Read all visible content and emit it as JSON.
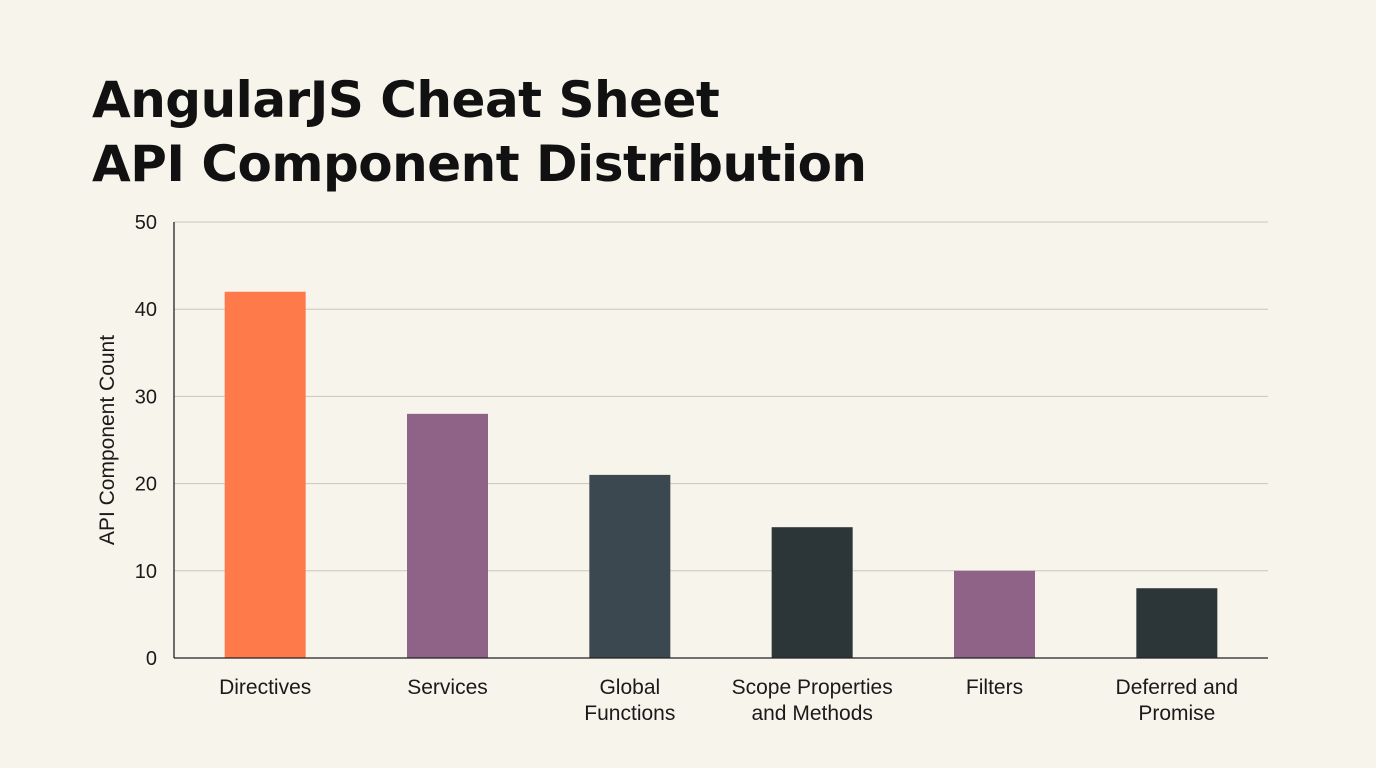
{
  "chart_data": {
    "type": "bar",
    "title_lines": [
      "AngularJS Cheat Sheet",
      "API Component Distribution"
    ],
    "xlabel": "",
    "ylabel": "API Component Count",
    "ylim": [
      0,
      50
    ],
    "yticks": [
      0,
      10,
      20,
      30,
      40,
      50
    ],
    "grid": true,
    "legend": "none",
    "categories": [
      [
        "Directives"
      ],
      [
        "Services"
      ],
      [
        "Global",
        "Functions"
      ],
      [
        "Scope Properties",
        "and Methods"
      ],
      [
        "Filters"
      ],
      [
        "Deferred and",
        "Promise"
      ]
    ],
    "values": [
      42,
      28,
      21,
      15,
      10,
      8
    ],
    "colors": [
      "#ff7a4a",
      "#8f6287",
      "#3b4850",
      "#2c3538",
      "#8f6287",
      "#2c3538"
    ]
  }
}
